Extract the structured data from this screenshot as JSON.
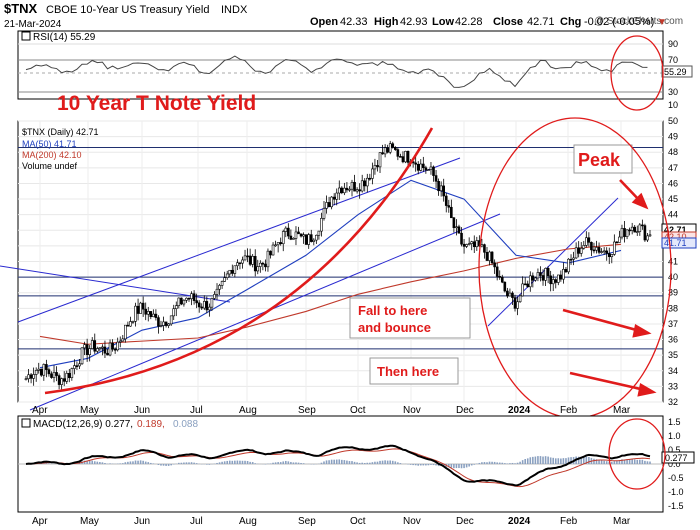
{
  "header": {
    "ticker": "$TNX",
    "name": "CBOE 10-Year US Treasury Yield",
    "exchange": "INDX",
    "date": "21-Mar-2024",
    "copyright": "@ StockCharts.com",
    "open_label": "Open",
    "open": "42.33",
    "high_label": "High",
    "high": "42.93",
    "low_label": "Low",
    "low": "42.28",
    "close_label": "Close",
    "close": "42.71",
    "chg_label": "Chg",
    "chg": "-0.02 (-0.05%)",
    "chg_arrow": "▼"
  },
  "rsi": {
    "label": "RSI(14) 55.29",
    "value": 55.29,
    "value_label": "55.29",
    "ticks": [
      "90",
      "70",
      "50",
      "30",
      "10"
    ]
  },
  "price": {
    "legend": [
      {
        "text": "$TNX (Daily) 42.71",
        "color": "#000000"
      },
      {
        "text": "MA(50) 41.71",
        "color": "#1f3fbf"
      },
      {
        "text": "MA(200) 42.10",
        "color": "#c0392b"
      },
      {
        "text": "Volume undef",
        "color": "#000000"
      }
    ],
    "last": 42.71,
    "last_label": "42.71",
    "ma50": 41.71,
    "ma50_label": "41.71",
    "ma200": 42.1,
    "ma200_label": "42.10",
    "ticks": [
      "50",
      "49",
      "48",
      "47",
      "46",
      "45",
      "44",
      "43",
      "41",
      "40",
      "39",
      "38",
      "37",
      "36",
      "35",
      "34",
      "33",
      "32"
    ]
  },
  "macd": {
    "label": "MACD(12,26,9) 0.277, 0.189, 0.088",
    "label_main": "MACD(12,26,9) 0.277,",
    "label_signal": "0.189,",
    "label_hist": "0.088",
    "value_label": "0.277",
    "ticks": [
      "1.5",
      "1.0",
      "0.5",
      "0.0",
      "-0.5",
      "-1.0",
      "-1.5"
    ]
  },
  "x_axis": {
    "labels": [
      "Apr",
      "May",
      "Jun",
      "Jul",
      "Aug",
      "Sep",
      "Oct",
      "Nov",
      "Dec",
      "2024",
      "Feb",
      "Mar"
    ],
    "bold_label": "2024"
  },
  "annotations": {
    "title": "10 Year T Note Yield",
    "peak": "Peak",
    "fall_line1": "Fall to here",
    "fall_line2": "and bounce",
    "then_here": "Then here"
  },
  "colors": {
    "price": "#000000",
    "ma50": "#1f3fbf",
    "ma200": "#c0392b",
    "annotation": "#e01b1b",
    "trendline": "#2a2ad0",
    "macd_signal": "#c0392b",
    "histogram": "#8aa0c0",
    "volume_box": "#eeeeee"
  },
  "chart_data": {
    "type": "line",
    "x": [
      "Apr",
      "May",
      "Jun",
      "Jul",
      "Aug",
      "Sep",
      "Oct",
      "Nov",
      "Dec",
      "2024",
      "Feb",
      "Mar"
    ],
    "series": [
      {
        "name": "$TNX (Daily)",
        "values": [
          33.5,
          34.8,
          37.5,
          38.2,
          41.0,
          42.8,
          46.5,
          48.4,
          42.5,
          38.8,
          41.0,
          42.71
        ]
      },
      {
        "name": "MA(50)",
        "values": [
          34.2,
          34.8,
          36.6,
          37.4,
          39.2,
          41.4,
          44.0,
          46.2,
          45.0,
          41.4,
          40.9,
          41.71
        ]
      },
      {
        "name": "MA(200)",
        "values": [
          36.2,
          35.7,
          35.9,
          36.1,
          36.8,
          37.8,
          38.9,
          39.7,
          40.4,
          41.2,
          41.8,
          42.1
        ]
      }
    ],
    "rsi_value": 55.29,
    "macd": {
      "macd": 0.277,
      "signal": 0.189,
      "histogram": 0.088
    },
    "horizontal_levels": [
      48.3,
      40.0,
      38.8,
      35.4,
      32.0
    ],
    "ylim": [
      32,
      50
    ],
    "title": "$TNX CBOE 10-Year US Treasury Yield INDX"
  }
}
